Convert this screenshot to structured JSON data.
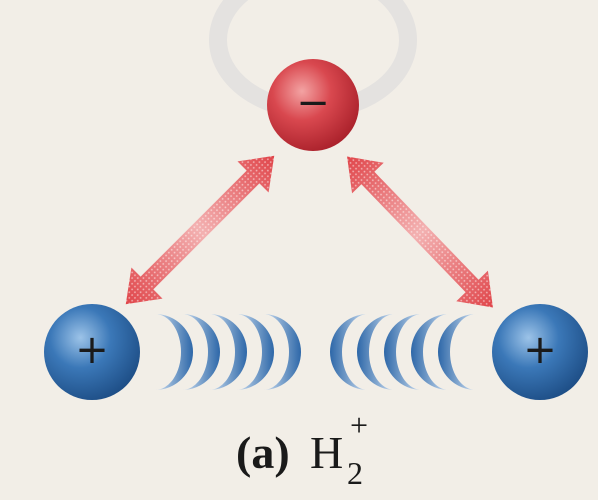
{
  "nodes": [
    {
      "label": "−"
    },
    {
      "label": "+"
    },
    {
      "label": "+"
    }
  ],
  "caption": {
    "part": "(a)",
    "formula": "H",
    "subscript": "2",
    "superscript": "+"
  }
}
